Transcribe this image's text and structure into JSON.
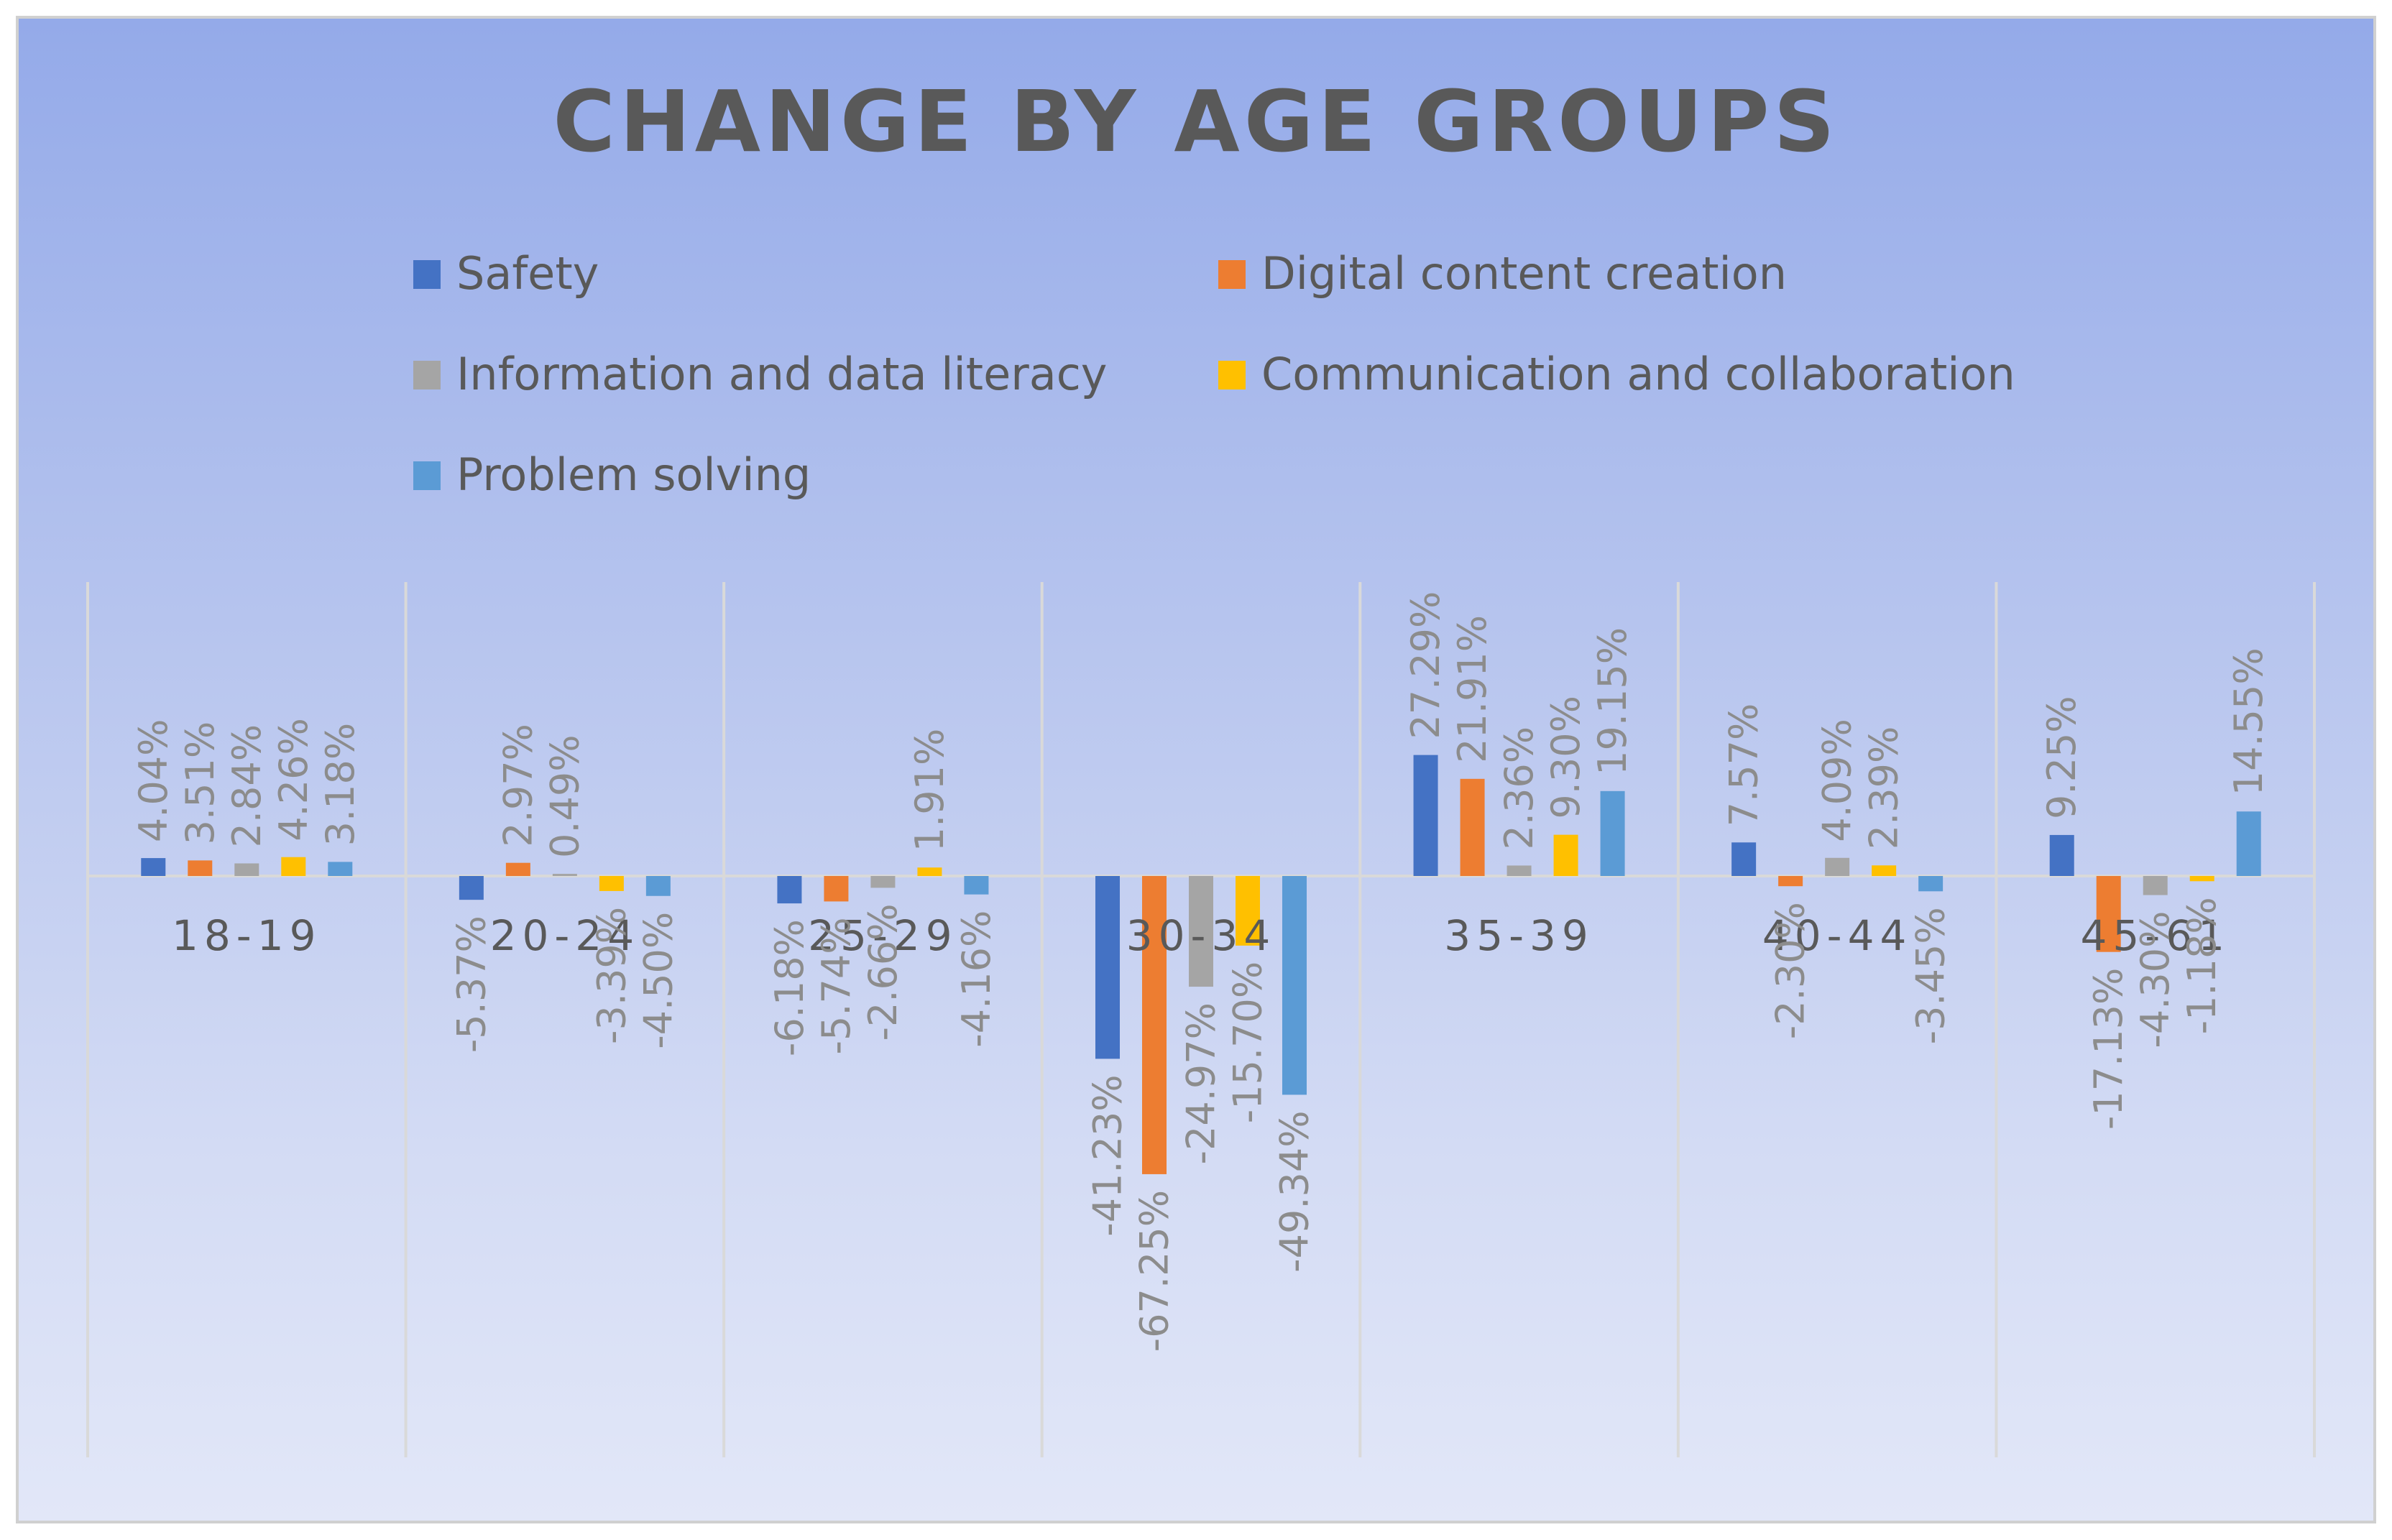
{
  "chart_data": {
    "type": "bar",
    "title": "CHANGE BY AGE GROUPS",
    "xlabel": "",
    "ylabel": "",
    "ylim": [
      -80,
      40
    ],
    "categories": [
      "18-19",
      "20-24",
      "25-29",
      "30-34",
      "35-39",
      "40-44",
      "45-61"
    ],
    "legend_position": "top",
    "series": [
      {
        "name": "Safety",
        "color": "#4472c4",
        "values": [
          4.04,
          -5.37,
          -6.18,
          -41.23,
          27.29,
          7.57,
          9.25
        ],
        "labels": [
          "4.04%",
          "-5.37%",
          "-6.18%",
          "-41.23%",
          "27.29%",
          "7.57%",
          "9.25%"
        ]
      },
      {
        "name": "Digital content creation",
        "color": "#ed7d31",
        "values": [
          3.51,
          2.97,
          -5.74,
          -67.25,
          21.91,
          -2.3,
          -17.13
        ],
        "labels": [
          "3.51%",
          "2.97%",
          "-5.74%",
          "-67.25%",
          "21.91%",
          "-2.30%",
          "-17.13%"
        ]
      },
      {
        "name": "Information and data literacy",
        "color": "#a5a5a5",
        "values": [
          2.84,
          0.49,
          -2.66,
          -24.97,
          2.36,
          4.09,
          -4.3
        ],
        "labels": [
          "2.84%",
          "0.49%",
          "-2.66%",
          "-24.97%",
          "2.36%",
          "4.09%",
          "-4.30%"
        ]
      },
      {
        "name": "Communication and collaboration",
        "color": "#ffc000",
        "values": [
          4.26,
          -3.39,
          1.91,
          -15.7,
          9.3,
          2.39,
          -1.18
        ],
        "labels": [
          "4.26%",
          "-3.39%",
          "1.91%",
          "-15.70%",
          "9.30%",
          "2.39%",
          "-1.18%"
        ]
      },
      {
        "name": "Problem solving",
        "color": "#5b9bd5",
        "values": [
          3.18,
          -4.5,
          -4.16,
          -49.34,
          19.15,
          -3.45,
          14.55
        ],
        "labels": [
          "3.18%",
          "-4.50%",
          "-4.16%",
          "-49.34%",
          "19.15%",
          "-3.45%",
          "14.55%"
        ]
      }
    ]
  }
}
